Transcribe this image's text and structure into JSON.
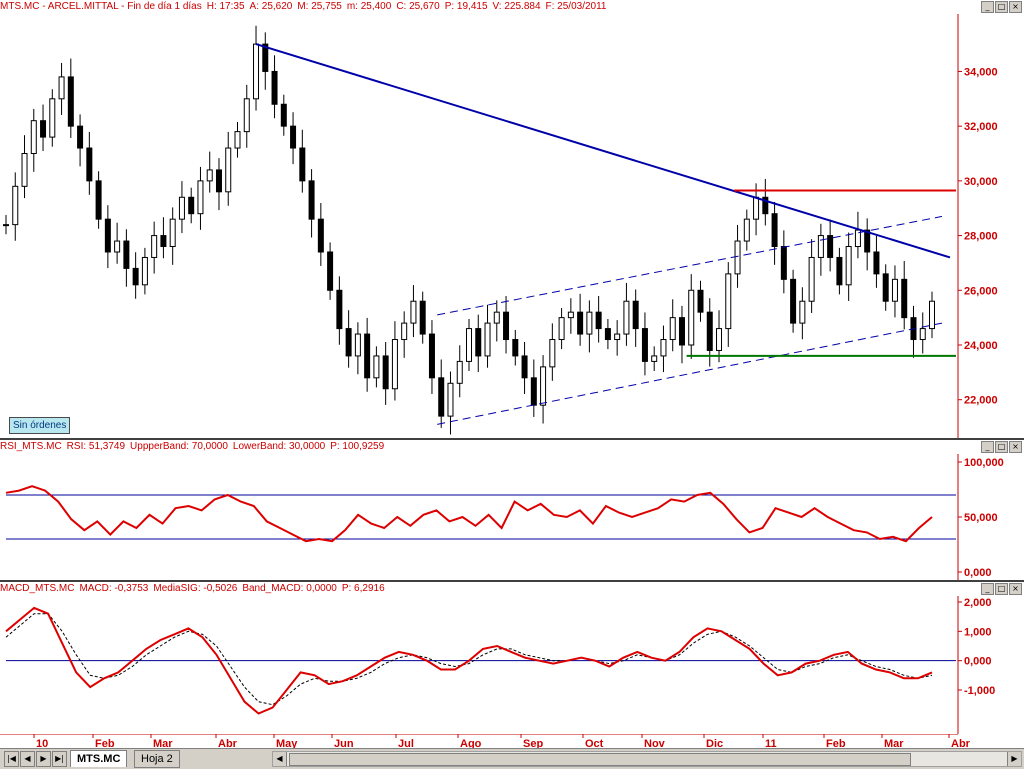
{
  "price_pane": {
    "title_fields": [
      "MTS.MC - ARCEL.MITTAL - Fin de día 1 días",
      "H: 17:35",
      "A: 25,620",
      "M: 25,755",
      "m: 25,400",
      "C: 25,670",
      "P: 19,415",
      "V: 225.884",
      "F: 25/03/2011"
    ],
    "title_color": "#cc0000",
    "yticks": [
      "34,000",
      "32,000",
      "30,000",
      "28,000",
      "26,000",
      "24,000",
      "22,000"
    ],
    "orders_badge": "Sin órdenes",
    "close_series": [
      28.4,
      29.8,
      31.0,
      32.2,
      31.6,
      33.0,
      33.8,
      32.0,
      31.2,
      30.0,
      28.6,
      27.4,
      27.8,
      26.8,
      26.2,
      27.2,
      28.0,
      27.6,
      28.6,
      29.4,
      28.8,
      30.0,
      30.4,
      29.6,
      31.2,
      31.8,
      33.0,
      35.0,
      34.0,
      32.8,
      32.0,
      31.2,
      30.0,
      28.6,
      27.4,
      26.0,
      24.6,
      23.6,
      24.4,
      22.8,
      23.6,
      22.4,
      24.2,
      24.8,
      25.6,
      24.4,
      22.8,
      21.4,
      22.6,
      23.4,
      24.6,
      23.6,
      24.8,
      25.2,
      24.2,
      23.6,
      22.8,
      21.8,
      23.2,
      24.2,
      25.0,
      25.2,
      24.4,
      25.2,
      24.6,
      24.2,
      24.4,
      25.6,
      24.6,
      23.4,
      23.6,
      24.2,
      25.0,
      24.0,
      26.0,
      25.2,
      23.8,
      24.6,
      26.6,
      27.8,
      28.6,
      29.4,
      28.8,
      27.6,
      26.4,
      24.8,
      25.6,
      27.2,
      28.0,
      27.2,
      26.2,
      27.6,
      28.2,
      27.4,
      26.6,
      25.6,
      26.4,
      25.0,
      24.2,
      24.6,
      25.6
    ],
    "ylim": [
      20.6,
      36.1
    ],
    "trendline_color": "#0000aa",
    "resistance_color": "#dd0000",
    "resistance_value": 29.65,
    "support_color": "#007700",
    "support_value": 23.6
  },
  "rsi_pane": {
    "title_fields": [
      "RSI_MTS.MC",
      "RSI: 51,3749",
      "UppperBand: 70,0000",
      "LowerBand: 30,0000",
      "P: 100,9259"
    ],
    "yticks": [
      "100,000",
      "50,000",
      "0,000"
    ],
    "series": [
      72,
      74,
      78,
      74,
      64,
      48,
      38,
      46,
      34,
      46,
      40,
      52,
      44,
      58,
      60,
      56,
      66,
      70,
      64,
      60,
      46,
      40,
      34,
      28,
      30,
      28,
      38,
      52,
      44,
      40,
      50,
      42,
      52,
      56,
      46,
      50,
      42,
      52,
      40,
      64,
      56,
      62,
      52,
      50,
      56,
      44,
      60,
      54,
      50,
      54,
      58,
      66,
      64,
      70,
      72,
      62,
      48,
      36,
      40,
      58,
      54,
      50,
      58,
      50,
      44,
      38,
      36,
      30,
      32,
      28,
      40,
      50
    ],
    "upper_band": 70,
    "lower_band": 30,
    "line_color": "#dd0000"
  },
  "macd_pane": {
    "title_fields": [
      "MACD_MTS.MC",
      "MACD: -0,3753",
      "MediaSIG: -0,5026",
      "Band_MACD: 0,0000",
      "P: 6,2916"
    ],
    "yticks": [
      "2,000",
      "1,000",
      "0,000",
      "-1,000"
    ],
    "macd": [
      1.0,
      1.4,
      1.8,
      1.6,
      0.6,
      -0.4,
      -0.9,
      -0.6,
      -0.4,
      0.0,
      0.4,
      0.7,
      0.9,
      1.1,
      0.8,
      0.2,
      -0.6,
      -1.4,
      -1.8,
      -1.6,
      -1.0,
      -0.4,
      -0.5,
      -0.8,
      -0.7,
      -0.5,
      -0.2,
      0.1,
      0.3,
      0.2,
      0.0,
      -0.3,
      -0.3,
      0.0,
      0.4,
      0.5,
      0.3,
      0.1,
      0.0,
      -0.1,
      0.0,
      0.1,
      0.0,
      -0.2,
      0.1,
      0.3,
      0.1,
      0.0,
      0.3,
      0.8,
      1.1,
      1.0,
      0.7,
      0.4,
      -0.1,
      -0.5,
      -0.4,
      -0.1,
      0.0,
      0.2,
      0.3,
      -0.1,
      -0.3,
      -0.4,
      -0.6,
      -0.6,
      -0.4
    ],
    "signal": [
      0.8,
      1.2,
      1.6,
      1.6,
      1.0,
      0.2,
      -0.5,
      -0.6,
      -0.5,
      -0.2,
      0.2,
      0.5,
      0.8,
      1.0,
      0.9,
      0.5,
      -0.2,
      -0.9,
      -1.4,
      -1.5,
      -1.2,
      -0.8,
      -0.6,
      -0.7,
      -0.7,
      -0.6,
      -0.4,
      -0.1,
      0.1,
      0.2,
      0.1,
      -0.1,
      -0.2,
      -0.1,
      0.2,
      0.4,
      0.4,
      0.2,
      0.1,
      0.0,
      0.0,
      0.1,
      0.0,
      -0.1,
      0.0,
      0.2,
      0.1,
      0.0,
      0.2,
      0.6,
      0.9,
      1.0,
      0.8,
      0.5,
      0.1,
      -0.3,
      -0.4,
      -0.2,
      -0.1,
      0.1,
      0.2,
      0.0,
      -0.2,
      -0.3,
      -0.5,
      -0.6,
      -0.5
    ],
    "macd_color": "#dd0000",
    "band_value": 0
  },
  "x_axis_labels": [
    "10",
    "Feb",
    "Mar",
    "Abr",
    "May",
    "Jun",
    "Jul",
    "Ago",
    "Sep",
    "Oct",
    "Nov",
    "Dic",
    "11",
    "Feb",
    "Mar",
    "Abr"
  ],
  "tabs": {
    "active": "MTS.MC",
    "other": "Hoja 2"
  }
}
